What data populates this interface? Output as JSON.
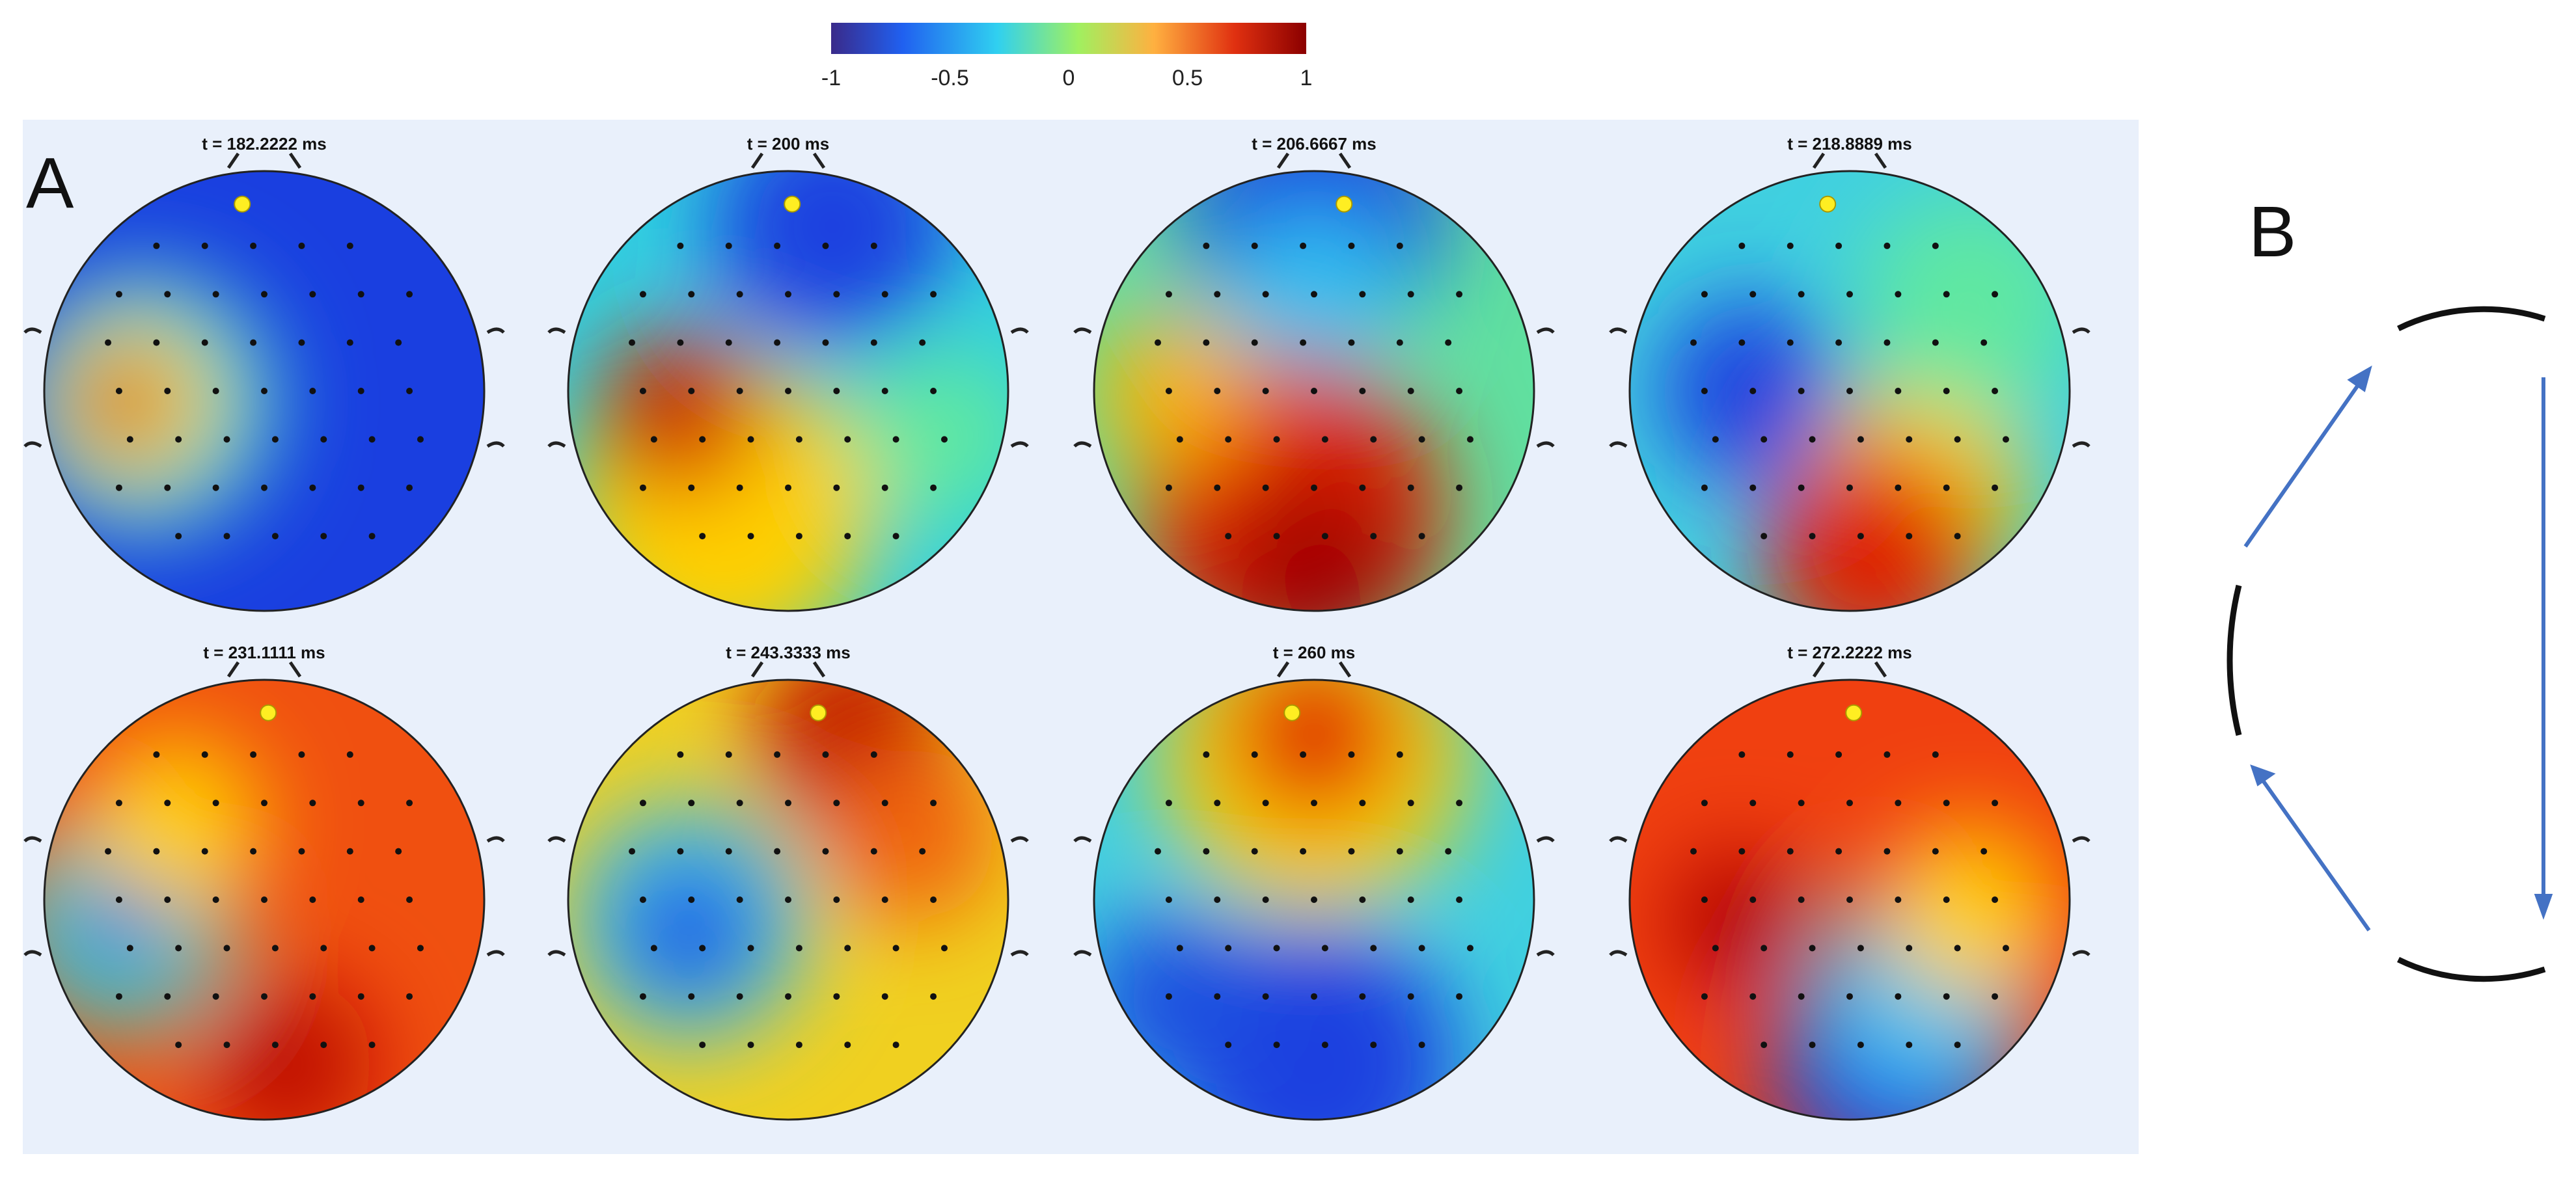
{
  "colorbar": {
    "ticks": [
      -1,
      -0.5,
      0,
      0.5,
      1
    ]
  },
  "panels": {
    "a_label": "A",
    "b_label": "B"
  },
  "maps": [
    {
      "title": "t = 182.2222 ms"
    },
    {
      "title": "t = 200 ms"
    },
    {
      "title": "t = 206.6667 ms"
    },
    {
      "title": "t = 218.8889 ms"
    },
    {
      "title": "t = 231.1111 ms"
    },
    {
      "title": "t = 243.3333 ms"
    },
    {
      "title": "t = 260 ms"
    },
    {
      "title": "t = 272.2222 ms"
    }
  ]
}
